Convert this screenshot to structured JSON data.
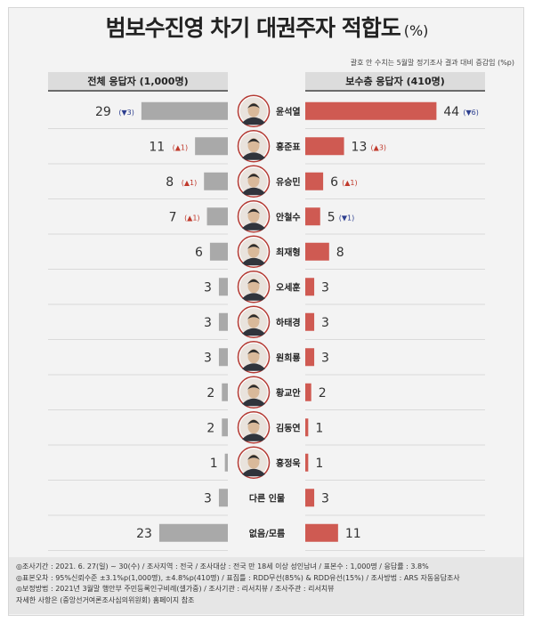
{
  "title": "범보수진영 차기 대권주자 적합도",
  "title_unit": "(%)",
  "note": "괄호 안 수치는 5월말 정기조사 결과 대비 증감임 (%p)",
  "header_left": "전체 응답자 (1,000명)",
  "header_right": "보수층 응답자 (410명)",
  "colors": {
    "left_bar": "#a9a9a9",
    "right_bar": "#cf5a52",
    "up": "#c0392b",
    "down": "#2c3e8f"
  },
  "chart_data": {
    "type": "bar",
    "title": "범보수진영 차기 대권주자 적합도",
    "categories": [
      "윤석열",
      "홍준표",
      "유승민",
      "안철수",
      "최재형",
      "오세훈",
      "하태경",
      "원희룡",
      "황교안",
      "김동연",
      "홍정욱",
      "다른 인물",
      "없음/모름"
    ],
    "has_photo": [
      true,
      true,
      true,
      true,
      true,
      true,
      true,
      true,
      true,
      true,
      true,
      false,
      false
    ],
    "series": [
      {
        "name": "전체 응답자 (1,000명)",
        "values": [
          29,
          11,
          8,
          7,
          6,
          3,
          3,
          3,
          2,
          2,
          1,
          3,
          23
        ],
        "changes": [
          "▼3",
          "▲1",
          "▲1",
          "▲1",
          "",
          "",
          "",
          "",
          "",
          "",
          "",
          "",
          ""
        ]
      },
      {
        "name": "보수층 응답자 (410명)",
        "values": [
          44,
          13,
          6,
          5,
          8,
          3,
          3,
          3,
          2,
          1,
          1,
          3,
          11
        ],
        "changes": [
          "▼6",
          "▲3",
          "▲1",
          "▼1",
          "",
          "",
          "",
          "",
          "",
          "",
          "",
          "",
          ""
        ]
      }
    ]
  },
  "footer": [
    "◎조사기간 : 2021. 6. 27(일) ~ 30(수) / 조사지역 : 전국 / 조사대상 : 전국 만 18세 이상 성인남녀 / 표본수 : 1,000명 / 응답률 : 3.8%",
    "◎표본오차 : 95%신뢰수준 ±3.1%p(1,000명), ±4.8%p(410명) / 표집틀 : RDD무선(85%) & RDD유선(15%) / 조사방법 : ARS 자동응답조사",
    "◎보정방법 : 2021년 3월말 행안부 주민등록인구비례(셀가중) / 조사기관 : 리서치뷰 / 조사주관 : 리서치뷰",
    "자세한 사항은 (중앙선거여론조사심의위원회) 홈페이지 참조"
  ]
}
